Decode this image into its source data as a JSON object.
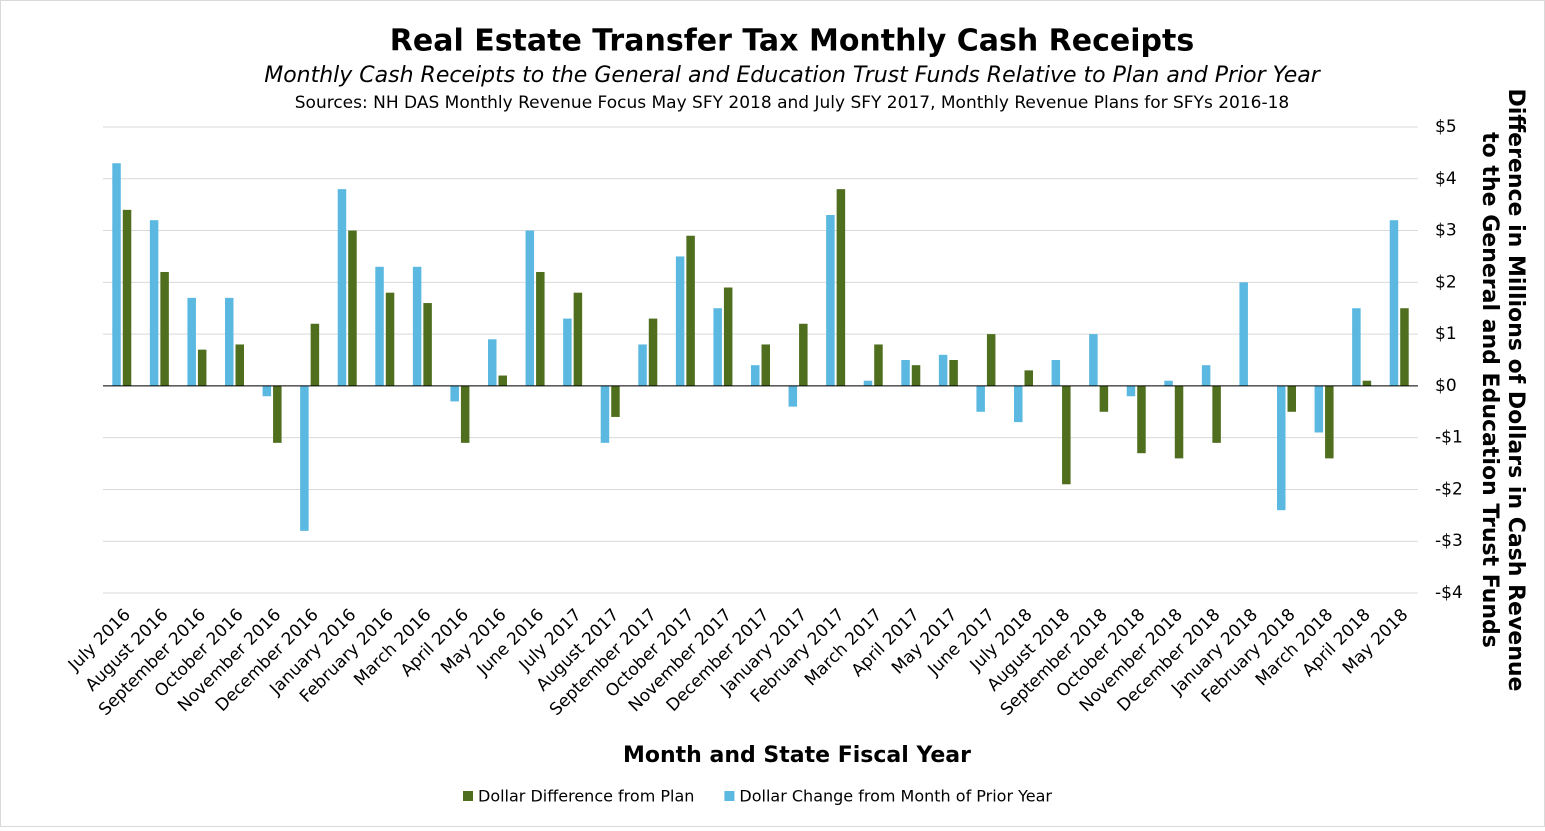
{
  "chart_data": {
    "type": "bar",
    "title": "Real Estate Transfer Tax Monthly Cash Receipts",
    "subtitle": "Monthly Cash Receipts to the General and Education Trust Funds Relative to Plan and Prior Year",
    "source": "Sources: NH DAS Monthly Revenue Focus May SFY 2018 and July SFY 2017, Monthly Revenue Plans for SFYs 2016-18",
    "x_label": "Month and State Fiscal Year",
    "y_label": [
      "Difference in Millions of Dollars in Cash Revenue",
      "to the General and Education Trust Funds"
    ],
    "categories": [
      "July 2016",
      "August 2016",
      "September 2016",
      "October 2016",
      "November 2016",
      "December 2016",
      "January 2016",
      "February 2016",
      "March 2016",
      "April 2016",
      "May 2016",
      "June 2016",
      "July 2017",
      "August 2017",
      "September 2017",
      "October 2017",
      "November 2017",
      "December 2017",
      "January 2017",
      "February 2017",
      "March 2017",
      "April 2017",
      "May 2017",
      "June 2017",
      "July 2018",
      "August 2018",
      "September 2018",
      "October 2018",
      "November 2018",
      "December 2018",
      "January 2018",
      "February 2018",
      "March 2018",
      "April 2018",
      "May 2018"
    ],
    "series": [
      {
        "name": "Dollar Difference from Plan",
        "color": "#4f6f1f",
        "values": [
          3.4,
          2.2,
          0.7,
          0.8,
          -1.1,
          1.2,
          3.0,
          1.8,
          1.6,
          -1.1,
          0.2,
          2.2,
          1.8,
          -0.6,
          1.3,
          2.9,
          1.9,
          0.8,
          1.2,
          3.8,
          0.8,
          0.4,
          0.5,
          1.0,
          0.3,
          -1.9,
          -0.5,
          -1.3,
          -1.4,
          -1.1,
          0,
          -0.5,
          -1.4,
          0.1,
          1.5
        ]
      },
      {
        "name": "Dollar Change from Month of Prior Year",
        "color": "#5bb8e0",
        "values": [
          4.3,
          3.2,
          1.7,
          1.7,
          -0.2,
          -2.8,
          3.8,
          2.3,
          2.3,
          -0.3,
          0.9,
          3.0,
          1.3,
          -1.1,
          0.8,
          2.5,
          1.5,
          0.4,
          -0.4,
          3.3,
          0.1,
          0.5,
          0.6,
          -0.5,
          -0.7,
          0.5,
          1.0,
          -0.2,
          0.1,
          0.4,
          2.0,
          -2.4,
          -0.9,
          1.5,
          3.2
        ]
      }
    ],
    "ylim": [
      -4,
      5
    ],
    "yticks": [
      {
        "value": 5,
        "label": "$5"
      },
      {
        "value": 4,
        "label": "$4"
      },
      {
        "value": 3,
        "label": "$3"
      },
      {
        "value": 2,
        "label": "$2"
      },
      {
        "value": 1,
        "label": "$1"
      },
      {
        "value": 0,
        "label": "$0"
      },
      {
        "value": -1,
        "label": "-$1"
      },
      {
        "value": -2,
        "label": "-$2"
      },
      {
        "value": -3,
        "label": "-$3"
      },
      {
        "value": -4,
        "label": "-$4"
      }
    ],
    "grid": true
  }
}
